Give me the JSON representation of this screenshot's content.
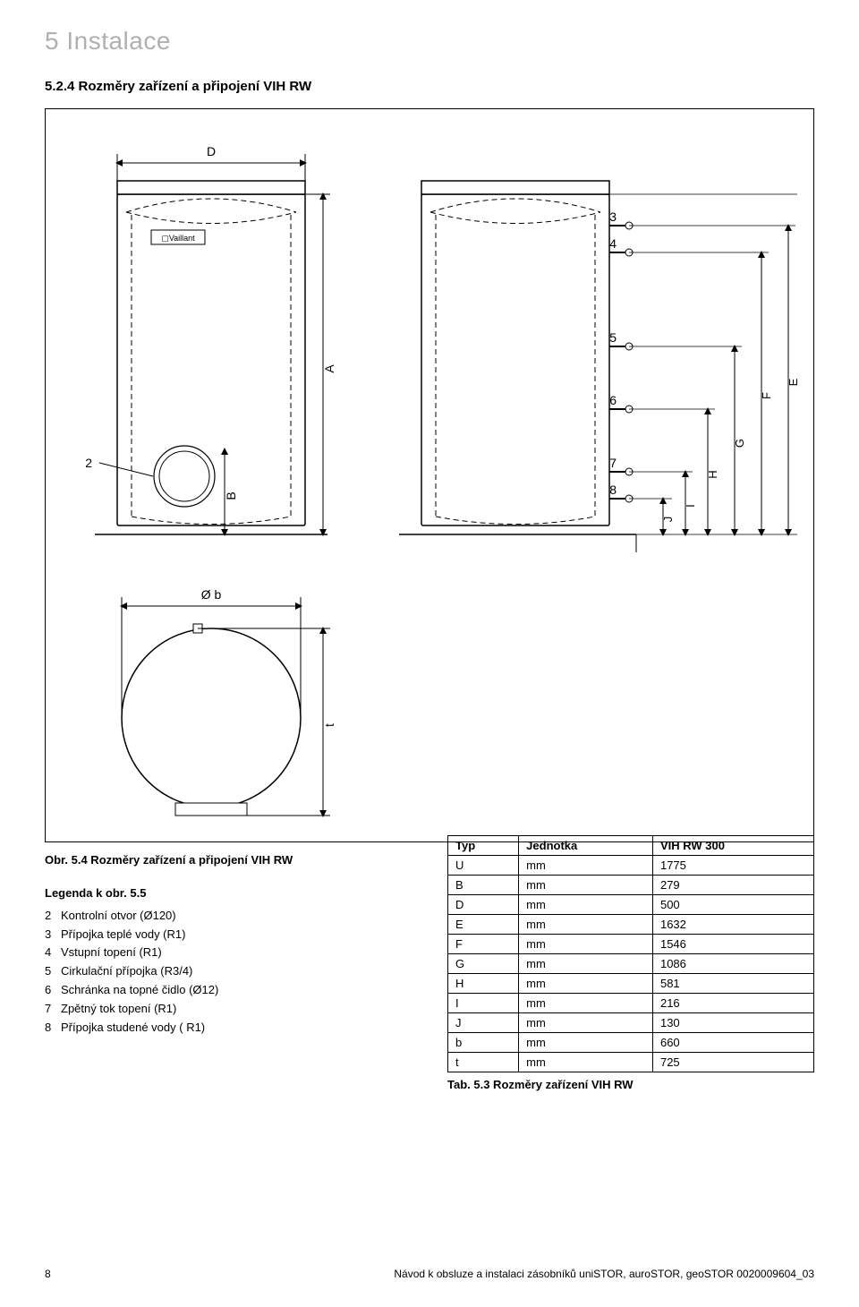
{
  "chapter": "5 Instalace",
  "section_title": "5.2.4   Rozměry zařízení a připojení VIH RW",
  "figure_caption": "Obr. 5.4 Rozměry zařízení a připojení VIH RW",
  "legend": {
    "title": "Legenda k obr. 5.5",
    "items": [
      {
        "n": "2",
        "text": "Kontrolní otvor (Ø120)"
      },
      {
        "n": "3",
        "text": "Přípojka teplé vody (R1)"
      },
      {
        "n": "4",
        "text": "Vstupní topení (R1)"
      },
      {
        "n": "5",
        "text": "Cirkulační přípojka (R3/4)"
      },
      {
        "n": "6",
        "text": "Schránka na topné čidlo (Ø12)"
      },
      {
        "n": "7",
        "text": "Zpětný tok topení (R1)"
      },
      {
        "n": "8",
        "text": "Přípojka studené vody ( R1)"
      }
    ]
  },
  "table": {
    "headers": [
      "Typ",
      "Jednotka",
      "VIH RW 300"
    ],
    "rows": [
      [
        "U",
        "mm",
        "1775"
      ],
      [
        "B",
        "mm",
        "279"
      ],
      [
        "D",
        "mm",
        "500"
      ],
      [
        "E",
        "mm",
        "1632"
      ],
      [
        "F",
        "mm",
        "1546"
      ],
      [
        "G",
        "mm",
        "1086"
      ],
      [
        "H",
        "mm",
        "581"
      ],
      [
        "I",
        "mm",
        "216"
      ],
      [
        "J",
        "mm",
        "130"
      ],
      [
        "b",
        "mm",
        "660"
      ],
      [
        "t",
        "mm",
        "725"
      ]
    ],
    "caption": "Tab. 5.3 Rozměry zařízení VIH RW"
  },
  "footer": {
    "page": "8",
    "doc": "Návod k obsluze a instalaci zásobníků uniSTOR, auroSTOR, geoSTOR 0020009604_03"
  },
  "diagram": {
    "labels": {
      "D": "D",
      "A": "A",
      "B": "B",
      "2": "2",
      "diam_b": "Ø b",
      "t": "t",
      "3": "3",
      "4": "4",
      "5": "5",
      "6": "6",
      "7": "7",
      "8": "8",
      "J": "J",
      "I": "I",
      "H": "H",
      "G": "G",
      "F": "F",
      "E": "E"
    },
    "colors": {
      "stroke": "#000000",
      "dash": "#000000",
      "fill": "#ffffff",
      "text": "#000000"
    },
    "font_size": 14
  }
}
